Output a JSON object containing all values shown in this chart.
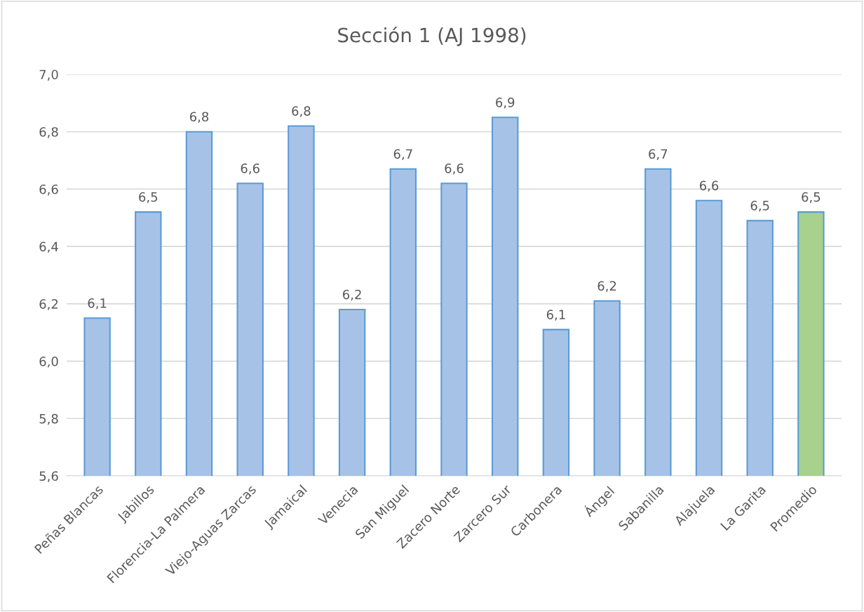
{
  "chart_data": {
    "type": "bar",
    "title": "Sección 1 (AJ 1998)",
    "categories": [
      "Peñas Blancas",
      "Jabillos",
      "Florencia-La Palmera",
      "Viejo-Aguas Zarcas",
      "Jamaical",
      "Venecia",
      "San Miguel",
      "Zacero Norte",
      "Zarcero Sur",
      "Carbonera",
      "Ángel",
      "Sabanilla",
      "Alajuela",
      "La Garita",
      "Promedio"
    ],
    "values": [
      6.15,
      6.52,
      6.8,
      6.62,
      6.82,
      6.18,
      6.67,
      6.62,
      6.85,
      6.11,
      6.21,
      6.67,
      6.56,
      6.49,
      6.52
    ],
    "value_labels": [
      "6,1",
      "6,5",
      "6,8",
      "6,6",
      "6,8",
      "6,2",
      "6,7",
      "6,6",
      "6,9",
      "6,1",
      "6,2",
      "6,7",
      "6,6",
      "6,5",
      "6,5"
    ],
    "colors": [
      "#a6c3e7",
      "#a6c3e7",
      "#a6c3e7",
      "#a6c3e7",
      "#a6c3e7",
      "#a6c3e7",
      "#a6c3e7",
      "#a6c3e7",
      "#a6c3e7",
      "#a6c3e7",
      "#a6c3e7",
      "#a6c3e7",
      "#a6c3e7",
      "#a6c3e7",
      "#a9d18e"
    ],
    "ylim": [
      5.6,
      7.0
    ],
    "yticks": [
      {
        "value": 5.6,
        "label": "5,6"
      },
      {
        "value": 5.8,
        "label": "5,8"
      },
      {
        "value": 6.0,
        "label": "6,0"
      },
      {
        "value": 6.2,
        "label": "6,2"
      },
      {
        "value": 6.4,
        "label": "6,4"
      },
      {
        "value": 6.6,
        "label": "6,6"
      },
      {
        "value": 6.8,
        "label": "6,8"
      },
      {
        "value": 7.0,
        "label": "7,0"
      }
    ],
    "grid": "y",
    "legend": false
  }
}
